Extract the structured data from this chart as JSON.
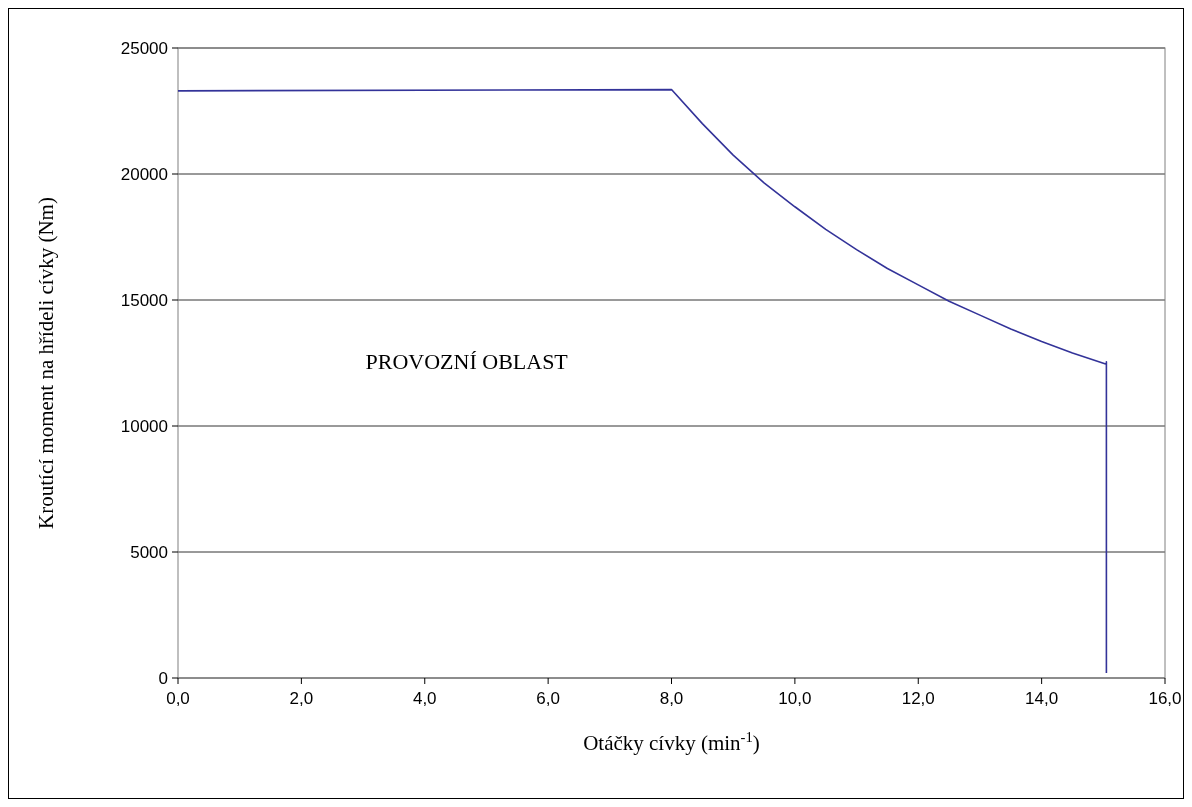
{
  "chart_data": {
    "type": "line",
    "xlabel": "Otáčky cívky (min$^{-1}$)",
    "ylabel": "Kroutící moment na hřídeli cívky (Nm)",
    "annotations": [
      "PROVOZNÍ OBLAST"
    ],
    "series": [
      {
        "color": "#333399",
        "x": [
          0,
          8.0,
          8.5,
          9.0,
          9.5,
          10.0,
          10.5,
          11.0,
          11.5,
          12.0,
          12.5,
          13.0,
          13.5,
          14.0,
          14.5,
          15.05,
          15.05,
          15.05
        ],
        "values": [
          23300,
          23350,
          22000,
          20750,
          19650,
          18700,
          17800,
          17000,
          16250,
          15600,
          14950,
          14400,
          13850,
          13350,
          12900,
          12450,
          12550,
          200
        ]
      }
    ],
    "xlim": [
      0,
      16
    ],
    "xticks": [
      {
        "value": 0,
        "label": "0,0"
      },
      {
        "value": 2,
        "label": "2,0"
      },
      {
        "value": 4,
        "label": "4,0"
      },
      {
        "value": 6,
        "label": "6,0"
      },
      {
        "value": 8,
        "label": "8,0"
      },
      {
        "value": 10,
        "label": "10,0"
      },
      {
        "value": 12,
        "label": "12,0"
      },
      {
        "value": 14,
        "label": "14,0"
      },
      {
        "value": 16,
        "label": "16,0"
      }
    ],
    "ylim": [
      0,
      25000
    ],
    "yticks": [
      0,
      5000,
      10000,
      15000,
      20000,
      25000
    ],
    "grid": "y",
    "marker": "none",
    "line_style": "solid"
  }
}
